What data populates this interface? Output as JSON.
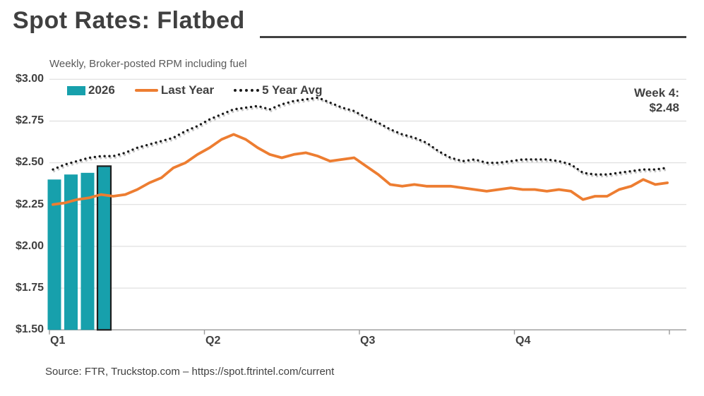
{
  "title": "Spot Rates: Flatbed",
  "subtitle": "Weekly, Broker-posted RPM including fuel",
  "source": "Source: FTR, Truckstop.com – https://spot.ftrintel.com/current",
  "annotation": {
    "line1": "Week 4:",
    "line2": "$2.48"
  },
  "legend": [
    {
      "label": "2026",
      "swatch": "bar-swatch",
      "color": "#17A0AC"
    },
    {
      "label": "Last Year",
      "swatch": "line-swatch",
      "color": "#ED7D31"
    },
    {
      "label": "5 Year Avg",
      "swatch": "dotted-swatch",
      "color": "#1A1A1A"
    }
  ],
  "colors": {
    "bar_teal": "#17A0AC",
    "bar_highlight_outline": "#1F1F1F",
    "last_year_orange": "#ED7D31",
    "five_year_avg_black": "#1A1A1A",
    "gridline": "#D9D9D9",
    "axis": "#9A9A9A",
    "text_dark": "#404040",
    "subtitle_gray": "#595959"
  },
  "chart_data": {
    "type": "bar+line",
    "title": "Spot Rates: Flatbed",
    "subtitle": "Weekly, Broker-posted RPM including fuel",
    "x_axis": {
      "labels": [
        "Q1",
        "Q2",
        "Q3",
        "Q4"
      ],
      "total_weeks": 52,
      "weeks_per_quarter": 13
    },
    "y_axis": {
      "ticks": [
        "$3.00",
        "$2.75",
        "$2.50",
        "$2.25",
        "$2.00",
        "$1.75",
        "$1.50"
      ],
      "min": 1.5,
      "max": 3.0,
      "step": 0.25,
      "grid": true
    },
    "bars": {
      "name": "2026",
      "color": "#17A0AC",
      "weeks": [
        1,
        2,
        3,
        4
      ],
      "values": [
        2.4,
        2.43,
        2.44,
        2.48
      ],
      "highlight_last": true,
      "latest_label": "Week 4: $2.48"
    },
    "series": [
      {
        "name": "Last Year",
        "style": "solid",
        "color": "#ED7D31",
        "values": [
          2.25,
          2.26,
          2.28,
          2.29,
          2.31,
          2.3,
          2.31,
          2.34,
          2.38,
          2.41,
          2.47,
          2.5,
          2.55,
          2.59,
          2.64,
          2.67,
          2.64,
          2.59,
          2.55,
          2.53,
          2.55,
          2.56,
          2.54,
          2.51,
          2.52,
          2.53,
          2.48,
          2.43,
          2.37,
          2.36,
          2.37,
          2.36,
          2.36,
          2.36,
          2.35,
          2.34,
          2.33,
          2.34,
          2.35,
          2.34,
          2.34,
          2.33,
          2.34,
          2.33,
          2.28,
          2.3,
          2.3,
          2.34,
          2.36,
          2.4,
          2.37,
          2.38
        ]
      },
      {
        "name": "5 Year Avg",
        "style": "dotted",
        "color": "#1A1A1A",
        "values": [
          2.46,
          2.49,
          2.51,
          2.53,
          2.54,
          2.54,
          2.56,
          2.59,
          2.61,
          2.63,
          2.65,
          2.69,
          2.72,
          2.76,
          2.79,
          2.82,
          2.83,
          2.84,
          2.82,
          2.85,
          2.87,
          2.88,
          2.89,
          2.86,
          2.83,
          2.81,
          2.77,
          2.74,
          2.7,
          2.67,
          2.65,
          2.62,
          2.57,
          2.53,
          2.51,
          2.52,
          2.5,
          2.5,
          2.51,
          2.52,
          2.52,
          2.52,
          2.51,
          2.49,
          2.44,
          2.43,
          2.43,
          2.44,
          2.45,
          2.46,
          2.46,
          2.47
        ]
      }
    ],
    "legend_position": "top-left-inside"
  }
}
